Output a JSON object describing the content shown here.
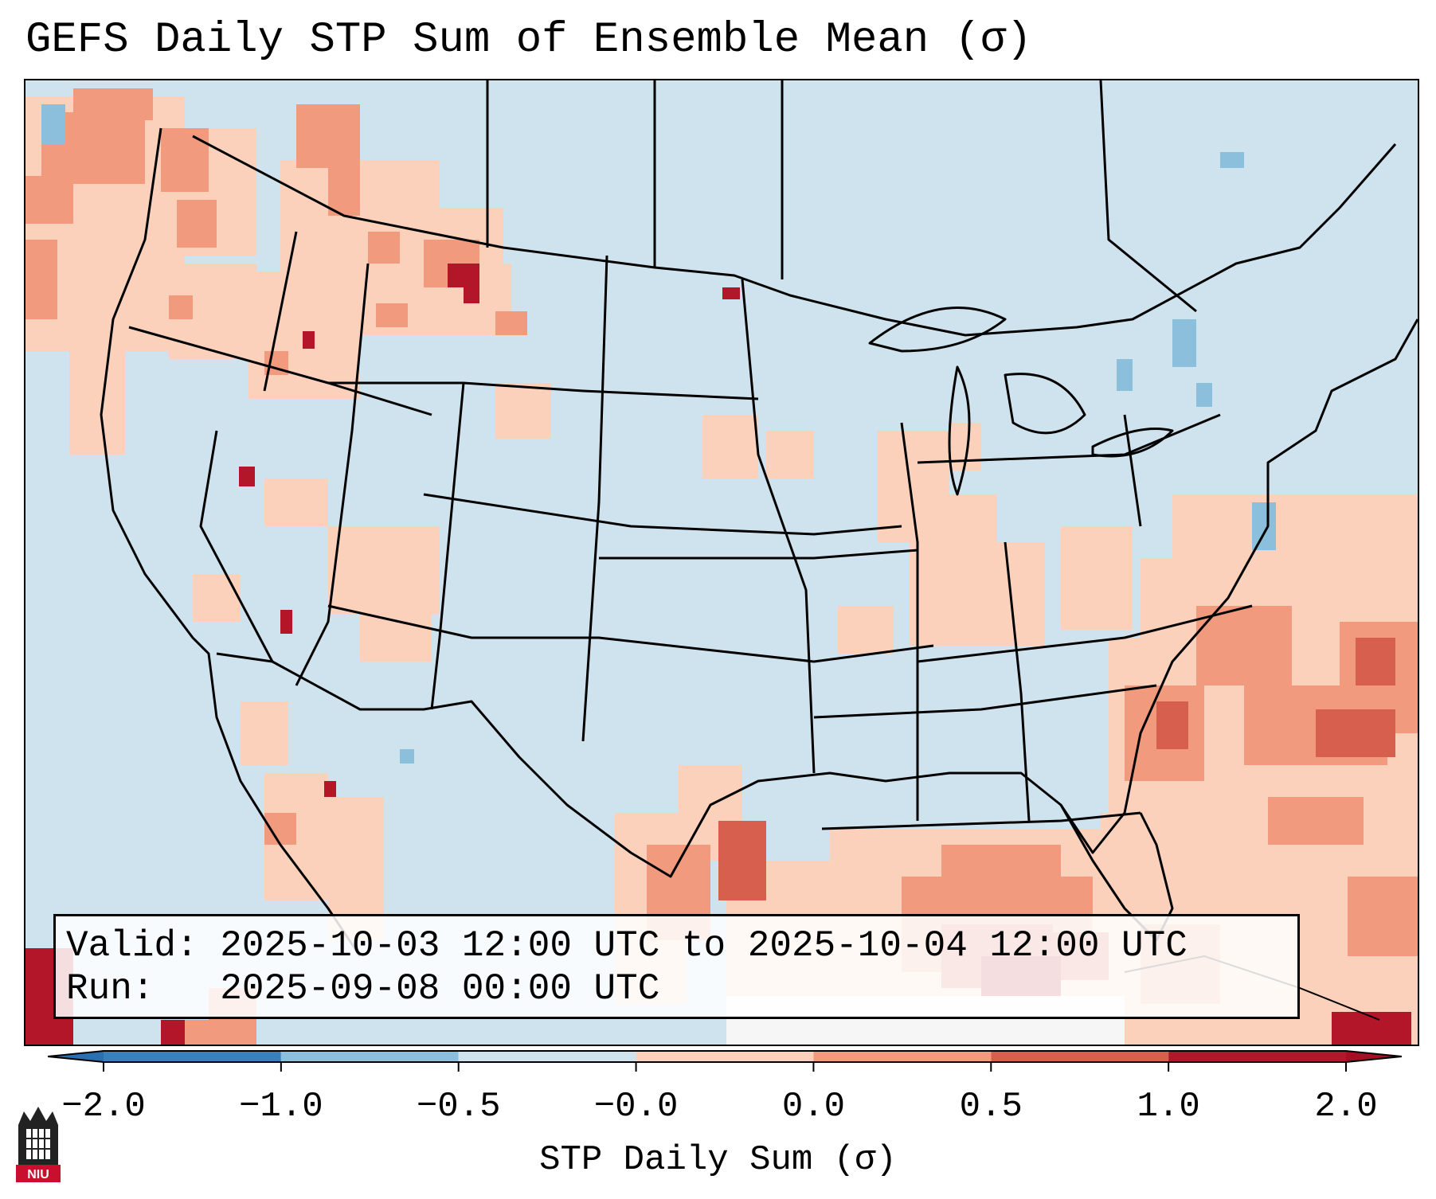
{
  "title": "GEFS Daily STP Sum of Ensemble Mean (σ)",
  "info": {
    "valid_label": "Valid:",
    "valid_value": "2025-10-03 12:00 UTC to 2025-10-04 12:00 UTC",
    "run_label": "Run:",
    "run_value": "2025-09-08 00:00 UTC"
  },
  "colorbar": {
    "label": "STP Daily Sum (σ)",
    "ticks": [
      "−2.0",
      "−1.0",
      "−0.5",
      "−0.0",
      "0.0",
      "0.5",
      "1.0",
      "2.0"
    ],
    "colors": [
      "#3a7fba",
      "#8cbfdc",
      "#cfe3ef",
      "#f6f6f6",
      "#fbd1bc",
      "#f29a7d",
      "#d6604d",
      "#b31529"
    ],
    "extend_min_color": "#2a6fae",
    "extend_max_color": "#a50f24"
  },
  "logo": {
    "text": "NIU"
  },
  "map": {
    "background_color": "#cfe3ef",
    "boundary_color": "#000000"
  }
}
